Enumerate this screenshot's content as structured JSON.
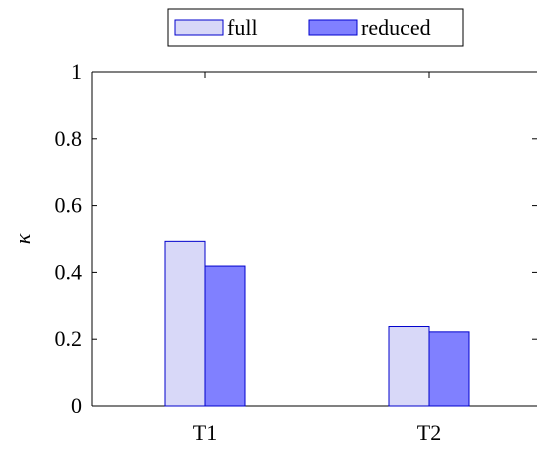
{
  "chart_data": {
    "type": "bar",
    "categories": [
      "T1",
      "T2"
    ],
    "series": [
      {
        "name": "full",
        "values": [
          0.493,
          0.238
        ],
        "fill": "#d8d8f8",
        "stroke": "#0000cc"
      },
      {
        "name": "reduced",
        "values": [
          0.419,
          0.222
        ],
        "fill": "#8080ff",
        "stroke": "#0000cc"
      }
    ],
    "ylabel": "κ",
    "ylim": [
      0,
      1
    ],
    "yticks": [
      "0",
      "0.2",
      "0.4",
      "0.6",
      "0.8",
      "1"
    ],
    "legend_position": "top-center",
    "grid": false
  }
}
